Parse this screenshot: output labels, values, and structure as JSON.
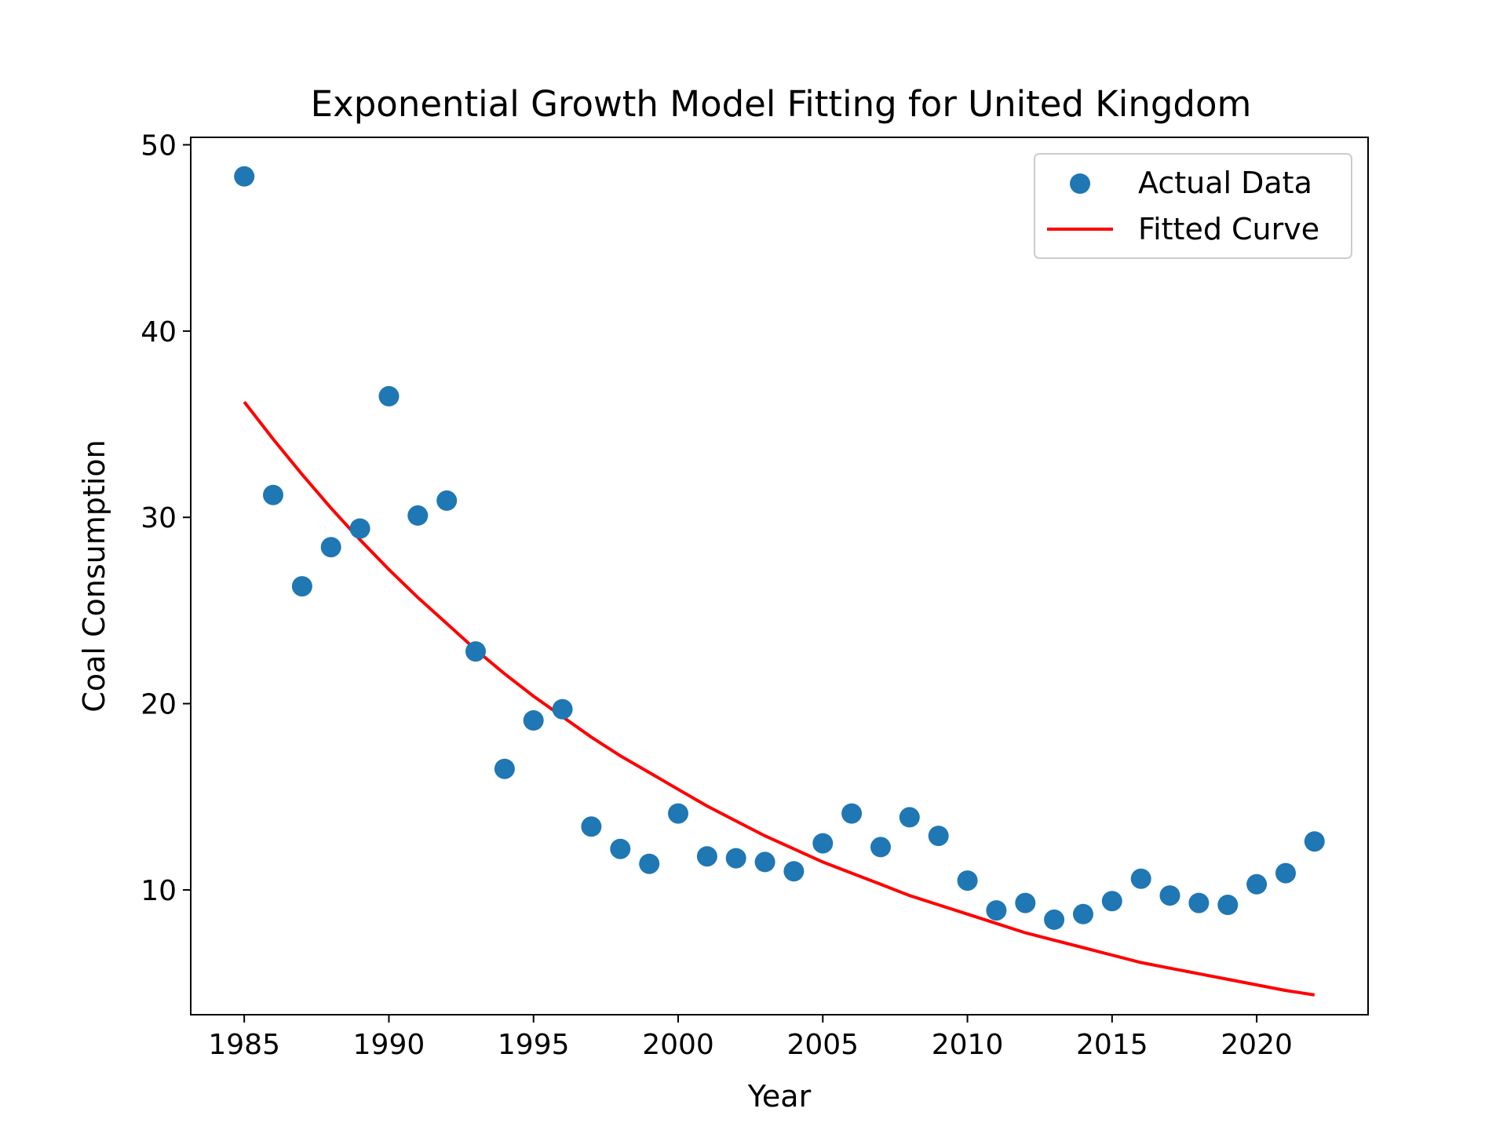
{
  "chart_data": {
    "type": "scatter",
    "title": "Exponential Growth Model Fitting for United Kingdom",
    "xlabel": "Year",
    "ylabel": "Coal Consumption",
    "xlim": [
      1983.15,
      2023.85
    ],
    "ylim": [
      3.3,
      50.4
    ],
    "xticks": [
      1985,
      1990,
      1995,
      2000,
      2005,
      2010,
      2015,
      2020
    ],
    "yticks": [
      10,
      20,
      30,
      40,
      50
    ],
    "grid": false,
    "legend_position": "top-right",
    "series": [
      {
        "name": "Actual Data",
        "kind": "scatter",
        "color": "#1f77b4",
        "x": [
          1985,
          1986,
          1987,
          1988,
          1989,
          1990,
          1991,
          1992,
          1993,
          1994,
          1995,
          1996,
          1997,
          1998,
          1999,
          2000,
          2001,
          2002,
          2003,
          2004,
          2005,
          2006,
          2007,
          2008,
          2009,
          2010,
          2011,
          2012,
          2013,
          2014,
          2015,
          2016,
          2017,
          2018,
          2019,
          2020,
          2021,
          2022
        ],
        "y": [
          48.3,
          31.2,
          26.3,
          28.4,
          29.4,
          36.5,
          30.1,
          30.9,
          22.8,
          16.5,
          19.1,
          19.7,
          13.4,
          12.2,
          11.4,
          14.1,
          11.8,
          11.7,
          11.5,
          11.0,
          12.5,
          14.1,
          12.3,
          13.9,
          12.9,
          10.5,
          8.9,
          9.3,
          8.4,
          8.7,
          9.4,
          10.6,
          9.7,
          9.3,
          9.2,
          10.3,
          10.9,
          12.6
        ]
      },
      {
        "name": "Fitted Curve",
        "kind": "line",
        "color": "#ff0000",
        "x": [
          1985,
          1986,
          1987,
          1988,
          1989,
          1990,
          1991,
          1992,
          1993,
          1994,
          1995,
          1996,
          1997,
          1998,
          1999,
          2000,
          2001,
          2002,
          2003,
          2004,
          2005,
          2006,
          2007,
          2008,
          2009,
          2010,
          2011,
          2012,
          2013,
          2014,
          2015,
          2016,
          2017,
          2018,
          2019,
          2020,
          2021,
          2022
        ],
        "y": [
          36.2,
          34.2,
          32.3,
          30.5,
          28.8,
          27.2,
          25.7,
          24.3,
          22.9,
          21.6,
          20.4,
          19.3,
          18.2,
          17.2,
          16.3,
          15.4,
          14.5,
          13.7,
          12.9,
          12.2,
          11.5,
          10.9,
          10.3,
          9.7,
          9.2,
          8.7,
          8.2,
          7.7,
          7.3,
          6.9,
          6.5,
          6.1,
          5.8,
          5.5,
          5.2,
          4.9,
          4.6,
          4.36
        ]
      }
    ]
  }
}
